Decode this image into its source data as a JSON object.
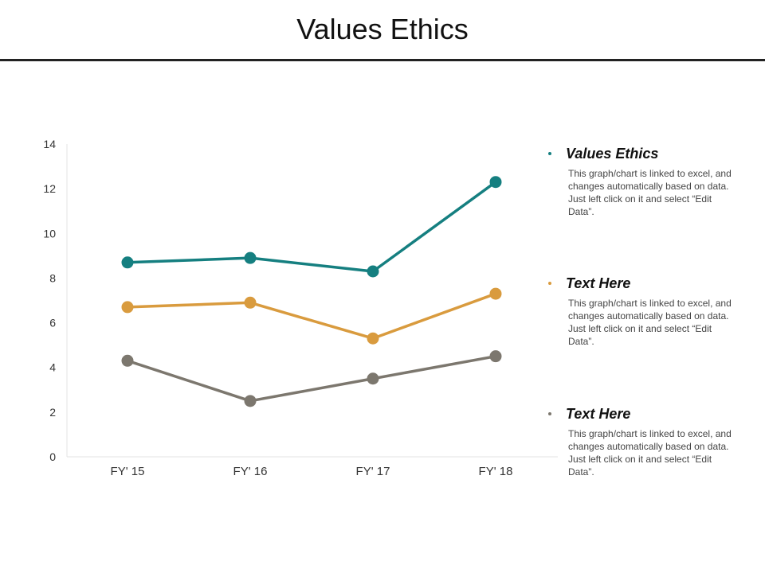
{
  "slide": {
    "title": "Values Ethics"
  },
  "chart_data": {
    "type": "line",
    "categories": [
      "FY' 15",
      "FY' 16",
      "FY' 17",
      "FY' 18"
    ],
    "ylim": [
      0,
      14
    ],
    "yticks": [
      0,
      2,
      4,
      6,
      8,
      10,
      12,
      14
    ],
    "grid": false,
    "legend": "right",
    "series": [
      {
        "name": "Values Ethics",
        "color": "#157f80",
        "values": [
          8.7,
          8.9,
          8.3,
          12.3
        ]
      },
      {
        "name": "Text Here",
        "color": "#d99b3e",
        "values": [
          6.7,
          6.9,
          5.3,
          7.3
        ]
      },
      {
        "name": "Text Here",
        "color": "#7c776e",
        "values": [
          4.3,
          2.5,
          3.5,
          4.5
        ]
      }
    ]
  },
  "legend_items": [
    {
      "name": "Values Ethics",
      "color": "#157f80",
      "description": "This graph/chart is linked to excel, and changes automatically based on data. Just left click on it and select “Edit Data”."
    },
    {
      "name": "Text Here",
      "color": "#d99b3e",
      "description": "This graph/chart is linked to excel, and changes automatically based on data. Just left click on it and select “Edit Data”."
    },
    {
      "name": "Text Here",
      "color": "#7c776e",
      "description": "This graph/chart is linked to excel, and changes automatically based on data. Just left click on it and select “Edit Data”."
    }
  ]
}
